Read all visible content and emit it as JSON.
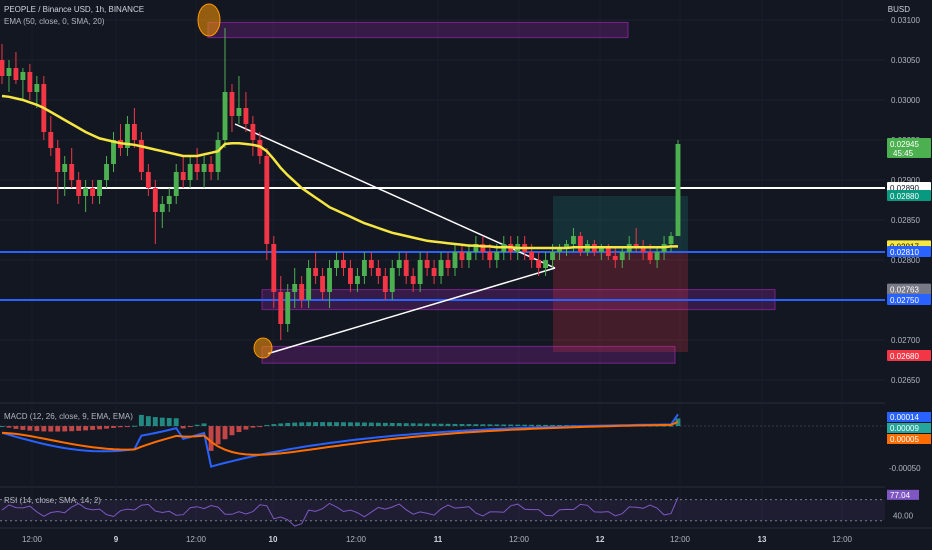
{
  "header": {
    "symbol_line": "PEOPLE / Binance USD, 1h, BINANCE",
    "ema_legend": "EMA (50, close, 0, SMA, 20)",
    "currency": "BUSD"
  },
  "macd_legend": "MACD (12, 26, close, 9, EMA, EMA)",
  "rsi_legend": "RSI (14, close, SMA, 14, 2)",
  "colors": {
    "background": "#131722",
    "up": "#4caf50",
    "down": "#f23645",
    "ema": "#f5e642",
    "support_line": "#2962ff",
    "key_level": "#ffffff",
    "zone": "#9c27b0",
    "macd": "#2962ff",
    "signal": "#ff6d00",
    "rsi": "#7e57c2"
  },
  "chart_data": {
    "type": "candlestick",
    "x_tick_labels": [
      "12:00",
      "9",
      "12:00",
      "10",
      "12:00",
      "11",
      "12:00",
      "12",
      "12:00",
      "13",
      "12:00"
    ],
    "y_tick_labels": [
      "0.03100",
      "0.03050",
      "0.03000",
      "0.02950",
      "0.02900",
      "0.02850",
      "0.02800",
      "0.02750",
      "0.02700",
      "0.02650"
    ],
    "ylim": [
      0.02625,
      0.03125
    ],
    "candles": [
      [
        0.0305,
        0.0307,
        0.0302,
        0.0303
      ],
      [
        0.0303,
        0.0305,
        0.0301,
        0.0304
      ],
      [
        0.0304,
        0.0306,
        0.0302,
        0.03025
      ],
      [
        0.03025,
        0.0304,
        0.03,
        0.03035
      ],
      [
        0.03035,
        0.03045,
        0.03,
        0.0301
      ],
      [
        0.0301,
        0.0303,
        0.0299,
        0.0302
      ],
      [
        0.0302,
        0.0303,
        0.0295,
        0.0296
      ],
      [
        0.0296,
        0.0298,
        0.0293,
        0.0294
      ],
      [
        0.0294,
        0.0295,
        0.0287,
        0.0291
      ],
      [
        0.0291,
        0.0293,
        0.0288,
        0.0292
      ],
      [
        0.0292,
        0.0294,
        0.0289,
        0.029
      ],
      [
        0.029,
        0.0291,
        0.0287,
        0.0288
      ],
      [
        0.0288,
        0.029,
        0.0286,
        0.0289
      ],
      [
        0.0289,
        0.029,
        0.0287,
        0.0288
      ],
      [
        0.0288,
        0.029,
        0.0287,
        0.029
      ],
      [
        0.029,
        0.0293,
        0.0289,
        0.0292
      ],
      [
        0.0292,
        0.0296,
        0.0291,
        0.0295
      ],
      [
        0.0295,
        0.0297,
        0.0293,
        0.0294
      ],
      [
        0.0294,
        0.0298,
        0.0293,
        0.0297
      ],
      [
        0.0297,
        0.0299,
        0.0294,
        0.0295
      ],
      [
        0.0295,
        0.0296,
        0.029,
        0.0291
      ],
      [
        0.0291,
        0.0292,
        0.0288,
        0.0289
      ],
      [
        0.0289,
        0.029,
        0.0282,
        0.0286
      ],
      [
        0.0286,
        0.0288,
        0.0284,
        0.0287
      ],
      [
        0.0287,
        0.0289,
        0.0286,
        0.0288
      ],
      [
        0.0288,
        0.0292,
        0.0287,
        0.0291
      ],
      [
        0.0291,
        0.0293,
        0.0289,
        0.029
      ],
      [
        0.029,
        0.0293,
        0.0289,
        0.0292
      ],
      [
        0.0292,
        0.0294,
        0.029,
        0.0291
      ],
      [
        0.0291,
        0.0293,
        0.0289,
        0.0292
      ],
      [
        0.0292,
        0.0293,
        0.029,
        0.0291
      ],
      [
        0.0291,
        0.0296,
        0.029,
        0.0295
      ],
      [
        0.0295,
        0.0309,
        0.0294,
        0.0301
      ],
      [
        0.0301,
        0.0302,
        0.0296,
        0.0298
      ],
      [
        0.0298,
        0.0303,
        0.0297,
        0.0299
      ],
      [
        0.0299,
        0.0301,
        0.0296,
        0.0297
      ],
      [
        0.0297,
        0.0298,
        0.0293,
        0.0295
      ],
      [
        0.0295,
        0.0296,
        0.0292,
        0.0293
      ],
      [
        0.0293,
        0.0294,
        0.028,
        0.0282
      ],
      [
        0.0282,
        0.0283,
        0.0274,
        0.0276
      ],
      [
        0.0276,
        0.0278,
        0.027,
        0.0272
      ],
      [
        0.0272,
        0.0277,
        0.0271,
        0.0276
      ],
      [
        0.0276,
        0.0279,
        0.0274,
        0.0277
      ],
      [
        0.0277,
        0.0278,
        0.0274,
        0.0275
      ],
      [
        0.0275,
        0.028,
        0.0274,
        0.0279
      ],
      [
        0.0279,
        0.0281,
        0.0277,
        0.0278
      ],
      [
        0.0278,
        0.0279,
        0.0275,
        0.0276
      ],
      [
        0.0276,
        0.028,
        0.0274,
        0.0279
      ],
      [
        0.0279,
        0.0281,
        0.0278,
        0.028
      ],
      [
        0.028,
        0.0281,
        0.0278,
        0.0279
      ],
      [
        0.0279,
        0.028,
        0.0276,
        0.0277
      ],
      [
        0.0277,
        0.0279,
        0.0276,
        0.0278
      ],
      [
        0.0278,
        0.0281,
        0.0277,
        0.028
      ],
      [
        0.028,
        0.0281,
        0.0278,
        0.0279
      ],
      [
        0.0279,
        0.028,
        0.0277,
        0.0278
      ],
      [
        0.0278,
        0.0279,
        0.0275,
        0.0276
      ],
      [
        0.0276,
        0.028,
        0.0275,
        0.0279
      ],
      [
        0.0279,
        0.0281,
        0.0278,
        0.028
      ],
      [
        0.028,
        0.0281,
        0.0277,
        0.0278
      ],
      [
        0.0278,
        0.0279,
        0.0276,
        0.0277
      ],
      [
        0.0277,
        0.0281,
        0.0276,
        0.028
      ],
      [
        0.028,
        0.0281,
        0.0278,
        0.0279
      ],
      [
        0.0279,
        0.028,
        0.0277,
        0.0278
      ],
      [
        0.0278,
        0.0281,
        0.0277,
        0.028
      ],
      [
        0.028,
        0.0281,
        0.0278,
        0.0279
      ],
      [
        0.0279,
        0.0282,
        0.0278,
        0.0281
      ],
      [
        0.0281,
        0.0282,
        0.0279,
        0.028
      ],
      [
        0.028,
        0.0282,
        0.0279,
        0.0281
      ],
      [
        0.0281,
        0.0283,
        0.028,
        0.0282
      ],
      [
        0.0282,
        0.0283,
        0.028,
        0.0281
      ],
      [
        0.0281,
        0.0282,
        0.0279,
        0.028
      ],
      [
        0.028,
        0.0282,
        0.0279,
        0.0281
      ],
      [
        0.0281,
        0.0283,
        0.028,
        0.0282
      ],
      [
        0.0282,
        0.0283,
        0.028,
        0.0281
      ],
      [
        0.0281,
        0.0283,
        0.028,
        0.0282
      ],
      [
        0.0282,
        0.0283,
        0.028,
        0.0281
      ],
      [
        0.0281,
        0.0282,
        0.0279,
        0.028
      ],
      [
        0.028,
        0.0281,
        0.0278,
        0.0279
      ],
      [
        0.0279,
        0.0281,
        0.0278,
        0.028
      ],
      [
        0.028,
        0.0282,
        0.0279,
        0.0281
      ],
      [
        0.0281,
        0.0282,
        0.028,
        0.02815
      ],
      [
        0.02815,
        0.02825,
        0.02805,
        0.0282
      ],
      [
        0.0282,
        0.0284,
        0.0281,
        0.0283
      ],
      [
        0.0283,
        0.02835,
        0.02805,
        0.0281
      ],
      [
        0.0281,
        0.02825,
        0.02805,
        0.0282
      ],
      [
        0.0282,
        0.02825,
        0.02805,
        0.0281
      ],
      [
        0.0281,
        0.0282,
        0.028,
        0.02815
      ],
      [
        0.02815,
        0.0282,
        0.028,
        0.02805
      ],
      [
        0.02805,
        0.02815,
        0.0279,
        0.028
      ],
      [
        0.028,
        0.02815,
        0.0279,
        0.0281
      ],
      [
        0.0281,
        0.0283,
        0.028,
        0.0282
      ],
      [
        0.0282,
        0.0284,
        0.0281,
        0.02815
      ],
      [
        0.02815,
        0.02825,
        0.028,
        0.0281
      ],
      [
        0.0281,
        0.0282,
        0.02795,
        0.028
      ],
      [
        0.028,
        0.02815,
        0.0279,
        0.0281
      ],
      [
        0.0281,
        0.0283,
        0.028,
        0.0282
      ],
      [
        0.0282,
        0.02835,
        0.0281,
        0.0283
      ],
      [
        0.0283,
        0.0295,
        0.0283,
        0.02945
      ]
    ],
    "ema_50": [
      0.03005,
      0.03004,
      0.03002,
      0.03,
      0.02997,
      0.02994,
      0.0299,
      0.02985,
      0.0298,
      0.02975,
      0.0297,
      0.02965,
      0.0296,
      0.02956,
      0.02952,
      0.0295,
      0.02948,
      0.02946,
      0.02945,
      0.02944,
      0.02942,
      0.0294,
      0.02938,
      0.02936,
      0.02934,
      0.02932,
      0.0293,
      0.0293,
      0.0293,
      0.02932,
      0.02934,
      0.02936,
      0.02945,
      0.02946,
      0.02946,
      0.02945,
      0.02944,
      0.02942,
      0.02936,
      0.02926,
      0.02915,
      0.02906,
      0.02898,
      0.0289,
      0.02884,
      0.02878,
      0.02872,
      0.02866,
      0.02862,
      0.02858,
      0.02854,
      0.0285,
      0.02846,
      0.02843,
      0.0284,
      0.02837,
      0.02834,
      0.02832,
      0.0283,
      0.02828,
      0.02826,
      0.02824,
      0.02823,
      0.02822,
      0.02821,
      0.0282,
      0.02819,
      0.02818,
      0.02818,
      0.02817,
      0.02817,
      0.02816,
      0.02816,
      0.02816,
      0.02815,
      0.02815,
      0.02815,
      0.02815,
      0.02815,
      0.02815,
      0.02815,
      0.02815,
      0.02816,
      0.02816,
      0.02816,
      0.02816,
      0.02816,
      0.02816,
      0.02816,
      0.02816,
      0.02816,
      0.02816,
      0.02816,
      0.02816,
      0.02816,
      0.02816,
      0.02817,
      0.02817
    ],
    "horizontal_lines": [
      {
        "value": 0.0289,
        "label": "0.02890"
      },
      {
        "value": 0.0281,
        "label": "0.02810"
      },
      {
        "value": 0.0275,
        "label": "0.02750"
      }
    ],
    "price_labels": [
      {
        "value": 0.02945,
        "text": "0.02945",
        "sub": "45:45"
      },
      {
        "value": 0.0289,
        "text": "0.02890"
      },
      {
        "value": 0.0288,
        "text": "0.02880"
      },
      {
        "value": 0.02817,
        "text": "0.02817"
      },
      {
        "value": 0.0281,
        "text": "0.02810"
      },
      {
        "value": 0.02763,
        "text": "0.02763"
      },
      {
        "value": 0.0275,
        "text": "0.02750"
      },
      {
        "value": 0.0268,
        "text": "0.02680"
      }
    ],
    "macd": {
      "y_tick_labels": [
        "-0.00050"
      ],
      "value_labels": [
        "0.00014",
        "0.00009",
        "0.00005"
      ],
      "ylim": [
        -0.0007,
        0.00025
      ]
    },
    "rsi": {
      "y_tick_labels": [
        "40.00"
      ],
      "value_labels": [
        "77.04"
      ],
      "ylim": [
        20,
        90
      ]
    }
  }
}
